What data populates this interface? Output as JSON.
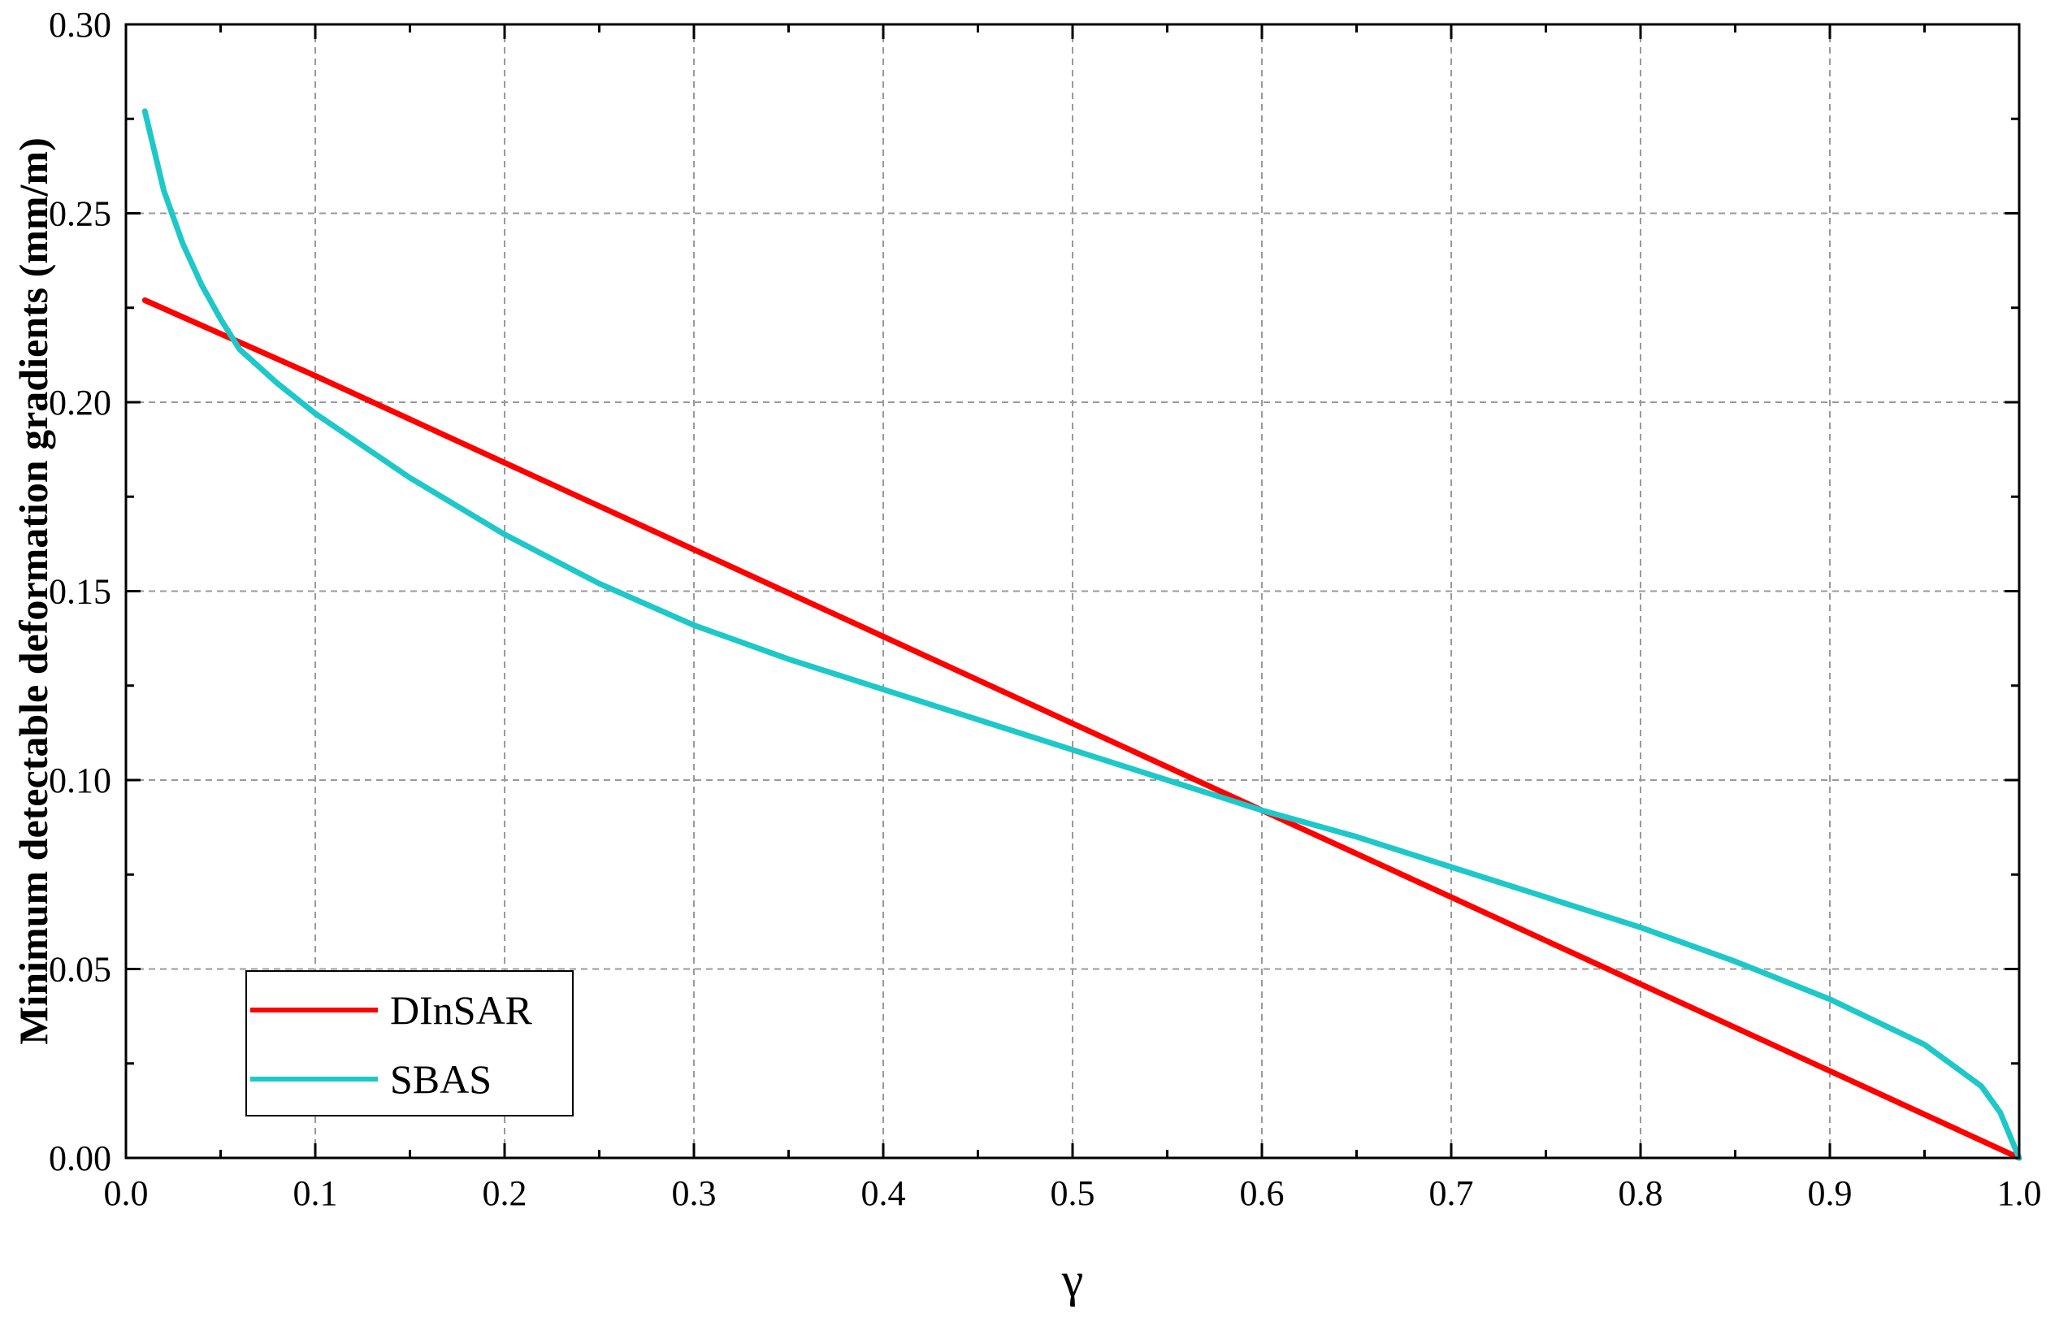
{
  "chart_data": {
    "type": "line",
    "title": "",
    "xlabel": "γ",
    "ylabel": "Minimum detectable deformation gradients (mm/m)",
    "xlim": [
      0.0,
      1.0
    ],
    "ylim": [
      0.0,
      0.3
    ],
    "x_ticks": [
      "0.0",
      "0.1",
      "0.2",
      "0.3",
      "0.4",
      "0.5",
      "0.6",
      "0.7",
      "0.8",
      "0.9",
      "1.0"
    ],
    "y_ticks": [
      "0.00",
      "0.05",
      "0.10",
      "0.15",
      "0.20",
      "0.25",
      "0.30"
    ],
    "grid": true,
    "legend_position": "bottom-left",
    "series": [
      {
        "name": "DInSAR",
        "color": "#ff0000",
        "x": [
          0.01,
          0.1,
          0.2,
          0.3,
          0.4,
          0.5,
          0.6,
          0.7,
          0.8,
          0.9,
          1.0
        ],
        "y": [
          0.227,
          0.207,
          0.184,
          0.161,
          0.138,
          0.115,
          0.092,
          0.069,
          0.046,
          0.023,
          0.0
        ]
      },
      {
        "name": "SBAS",
        "color": "#1ec8c8",
        "x": [
          0.01,
          0.02,
          0.03,
          0.04,
          0.05,
          0.06,
          0.08,
          0.1,
          0.15,
          0.2,
          0.25,
          0.3,
          0.35,
          0.4,
          0.45,
          0.5,
          0.55,
          0.6,
          0.65,
          0.7,
          0.75,
          0.8,
          0.85,
          0.9,
          0.95,
          0.98,
          0.99,
          1.0
        ],
        "y": [
          0.277,
          0.256,
          0.242,
          0.231,
          0.222,
          0.214,
          0.205,
          0.197,
          0.18,
          0.165,
          0.152,
          0.141,
          0.132,
          0.124,
          0.116,
          0.108,
          0.1,
          0.092,
          0.085,
          0.077,
          0.069,
          0.061,
          0.052,
          0.042,
          0.03,
          0.019,
          0.012,
          0.0
        ]
      }
    ]
  }
}
